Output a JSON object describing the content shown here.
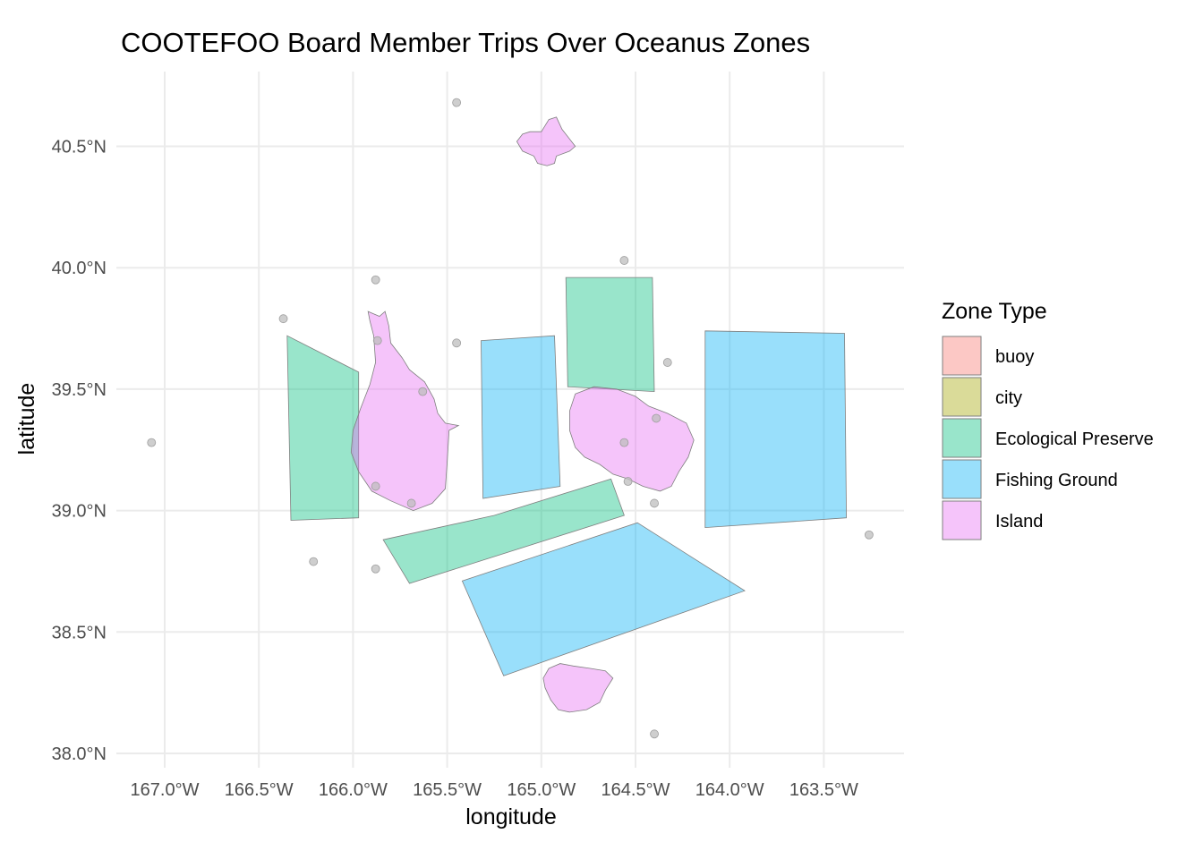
{
  "chart_data": {
    "type": "map",
    "title": "COOTEFOO Board Member Trips Over Oceanus Zones",
    "xlabel": "longitude",
    "ylabel": "latitude",
    "x_ticks": [
      {
        "value": -167.0,
        "label": "167.0°W"
      },
      {
        "value": -166.5,
        "label": "166.5°W"
      },
      {
        "value": -166.0,
        "label": "166.0°W"
      },
      {
        "value": -165.5,
        "label": "165.5°W"
      },
      {
        "value": -165.0,
        "label": "165.0°W"
      },
      {
        "value": -164.5,
        "label": "164.5°W"
      },
      {
        "value": -164.0,
        "label": "164.0°W"
      },
      {
        "value": -163.5,
        "label": "163.5°W"
      }
    ],
    "y_ticks": [
      {
        "value": 38.0,
        "label": "38.0°N"
      },
      {
        "value": 38.5,
        "label": "38.5°N"
      },
      {
        "value": 39.0,
        "label": "39.0°N"
      },
      {
        "value": 39.5,
        "label": "39.5°N"
      },
      {
        "value": 40.0,
        "label": "40.0°N"
      },
      {
        "value": 40.5,
        "label": "40.5°N"
      }
    ],
    "grid": true,
    "legend": {
      "title": "Zone Type",
      "position": "right",
      "entries": [
        {
          "label": "buoy",
          "color": "#F8766D"
        },
        {
          "label": "city",
          "color": "#A3A500"
        },
        {
          "label": "Ecological Preserve",
          "color": "#00BF7D"
        },
        {
          "label": "Fishing Ground",
          "color": "#00B0F6"
        },
        {
          "label": "Island",
          "color": "#E76BF3"
        }
      ]
    },
    "zones": [
      {
        "type": "Ecological Preserve",
        "coords": [
          [
            -166.35,
            39.72
          ],
          [
            -165.97,
            39.57
          ],
          [
            -165.97,
            38.97
          ],
          [
            -166.33,
            38.96
          ]
        ]
      },
      {
        "type": "Ecological Preserve",
        "coords": [
          [
            -164.87,
            39.96
          ],
          [
            -164.41,
            39.96
          ],
          [
            -164.4,
            39.49
          ],
          [
            -164.86,
            39.51
          ]
        ]
      },
      {
        "type": "Ecological Preserve",
        "coords": [
          [
            -165.84,
            38.88
          ],
          [
            -165.25,
            38.98
          ],
          [
            -164.63,
            39.13
          ],
          [
            -164.56,
            38.98
          ],
          [
            -165.7,
            38.7
          ]
        ]
      },
      {
        "type": "Fishing Ground",
        "coords": [
          [
            -165.32,
            39.7
          ],
          [
            -164.93,
            39.72
          ],
          [
            -164.9,
            39.1
          ],
          [
            -165.31,
            39.05
          ]
        ]
      },
      {
        "type": "Fishing Ground",
        "coords": [
          [
            -164.13,
            39.74
          ],
          [
            -163.39,
            39.73
          ],
          [
            -163.38,
            38.97
          ],
          [
            -164.13,
            38.93
          ]
        ]
      },
      {
        "type": "Fishing Ground",
        "coords": [
          [
            -165.42,
            38.71
          ],
          [
            -164.49,
            38.95
          ],
          [
            -163.92,
            38.67
          ],
          [
            -165.2,
            38.32
          ]
        ]
      },
      {
        "type": "Island",
        "coords": [
          [
            -165.92,
            39.82
          ],
          [
            -165.86,
            39.8
          ],
          [
            -165.83,
            39.82
          ],
          [
            -165.81,
            39.76
          ],
          [
            -165.8,
            39.69
          ],
          [
            -165.74,
            39.63
          ],
          [
            -165.7,
            39.58
          ],
          [
            -165.62,
            39.53
          ],
          [
            -165.57,
            39.46
          ],
          [
            -165.55,
            39.4
          ],
          [
            -165.51,
            39.36
          ],
          [
            -165.44,
            39.35
          ],
          [
            -165.49,
            39.33
          ],
          [
            -165.5,
            39.2
          ],
          [
            -165.51,
            39.09
          ],
          [
            -165.58,
            39.03
          ],
          [
            -165.68,
            39.0
          ],
          [
            -165.8,
            39.04
          ],
          [
            -165.9,
            39.08
          ],
          [
            -165.97,
            39.16
          ],
          [
            -166.01,
            39.24
          ],
          [
            -166.0,
            39.33
          ],
          [
            -165.96,
            39.42
          ],
          [
            -165.91,
            39.52
          ],
          [
            -165.88,
            39.61
          ],
          [
            -165.89,
            39.72
          ],
          [
            -165.91,
            39.78
          ]
        ]
      },
      {
        "type": "Island",
        "coords": [
          [
            -164.82,
            39.48
          ],
          [
            -164.72,
            39.51
          ],
          [
            -164.6,
            39.5
          ],
          [
            -164.5,
            39.47
          ],
          [
            -164.43,
            39.43
          ],
          [
            -164.33,
            39.4
          ],
          [
            -164.23,
            39.36
          ],
          [
            -164.19,
            39.29
          ],
          [
            -164.22,
            39.22
          ],
          [
            -164.27,
            39.16
          ],
          [
            -164.31,
            39.1
          ],
          [
            -164.37,
            39.08
          ],
          [
            -164.46,
            39.1
          ],
          [
            -164.54,
            39.13
          ],
          [
            -164.62,
            39.15
          ],
          [
            -164.69,
            39.19
          ],
          [
            -164.77,
            39.22
          ],
          [
            -164.82,
            39.26
          ],
          [
            -164.85,
            39.33
          ],
          [
            -164.85,
            39.41
          ]
        ]
      },
      {
        "type": "Island",
        "coords": [
          [
            -165.13,
            40.52
          ],
          [
            -165.1,
            40.55
          ],
          [
            -165.06,
            40.56
          ],
          [
            -165.0,
            40.56
          ],
          [
            -164.96,
            40.61
          ],
          [
            -164.92,
            40.62
          ],
          [
            -164.89,
            40.57
          ],
          [
            -164.82,
            40.5
          ],
          [
            -164.85,
            40.48
          ],
          [
            -164.92,
            40.46
          ],
          [
            -164.93,
            40.43
          ],
          [
            -164.97,
            40.42
          ],
          [
            -165.02,
            40.43
          ],
          [
            -165.04,
            40.46
          ],
          [
            -165.1,
            40.48
          ]
        ]
      },
      {
        "type": "Island",
        "coords": [
          [
            -164.96,
            38.35
          ],
          [
            -164.9,
            38.37
          ],
          [
            -164.83,
            38.36
          ],
          [
            -164.74,
            38.35
          ],
          [
            -164.66,
            38.34
          ],
          [
            -164.62,
            38.31
          ],
          [
            -164.66,
            38.26
          ],
          [
            -164.69,
            38.21
          ],
          [
            -164.76,
            38.18
          ],
          [
            -164.85,
            38.17
          ],
          [
            -164.91,
            38.18
          ],
          [
            -164.95,
            38.22
          ],
          [
            -164.98,
            38.27
          ],
          [
            -164.99,
            38.31
          ]
        ]
      }
    ],
    "points": [
      [
        -165.45,
        40.68
      ],
      [
        -164.56,
        40.03
      ],
      [
        -165.88,
        39.95
      ],
      [
        -166.37,
        39.79
      ],
      [
        -165.87,
        39.7
      ],
      [
        -165.45,
        39.69
      ],
      [
        -164.33,
        39.61
      ],
      [
        -165.63,
        39.49
      ],
      [
        -164.39,
        39.38
      ],
      [
        -164.56,
        39.28
      ],
      [
        -167.07,
        39.28
      ],
      [
        -164.54,
        39.12
      ],
      [
        -165.88,
        39.1
      ],
      [
        -165.69,
        39.03
      ],
      [
        -164.4,
        39.03
      ],
      [
        -163.26,
        38.9
      ],
      [
        -166.21,
        38.79
      ],
      [
        -165.88,
        38.76
      ],
      [
        -164.4,
        38.08
      ]
    ]
  }
}
